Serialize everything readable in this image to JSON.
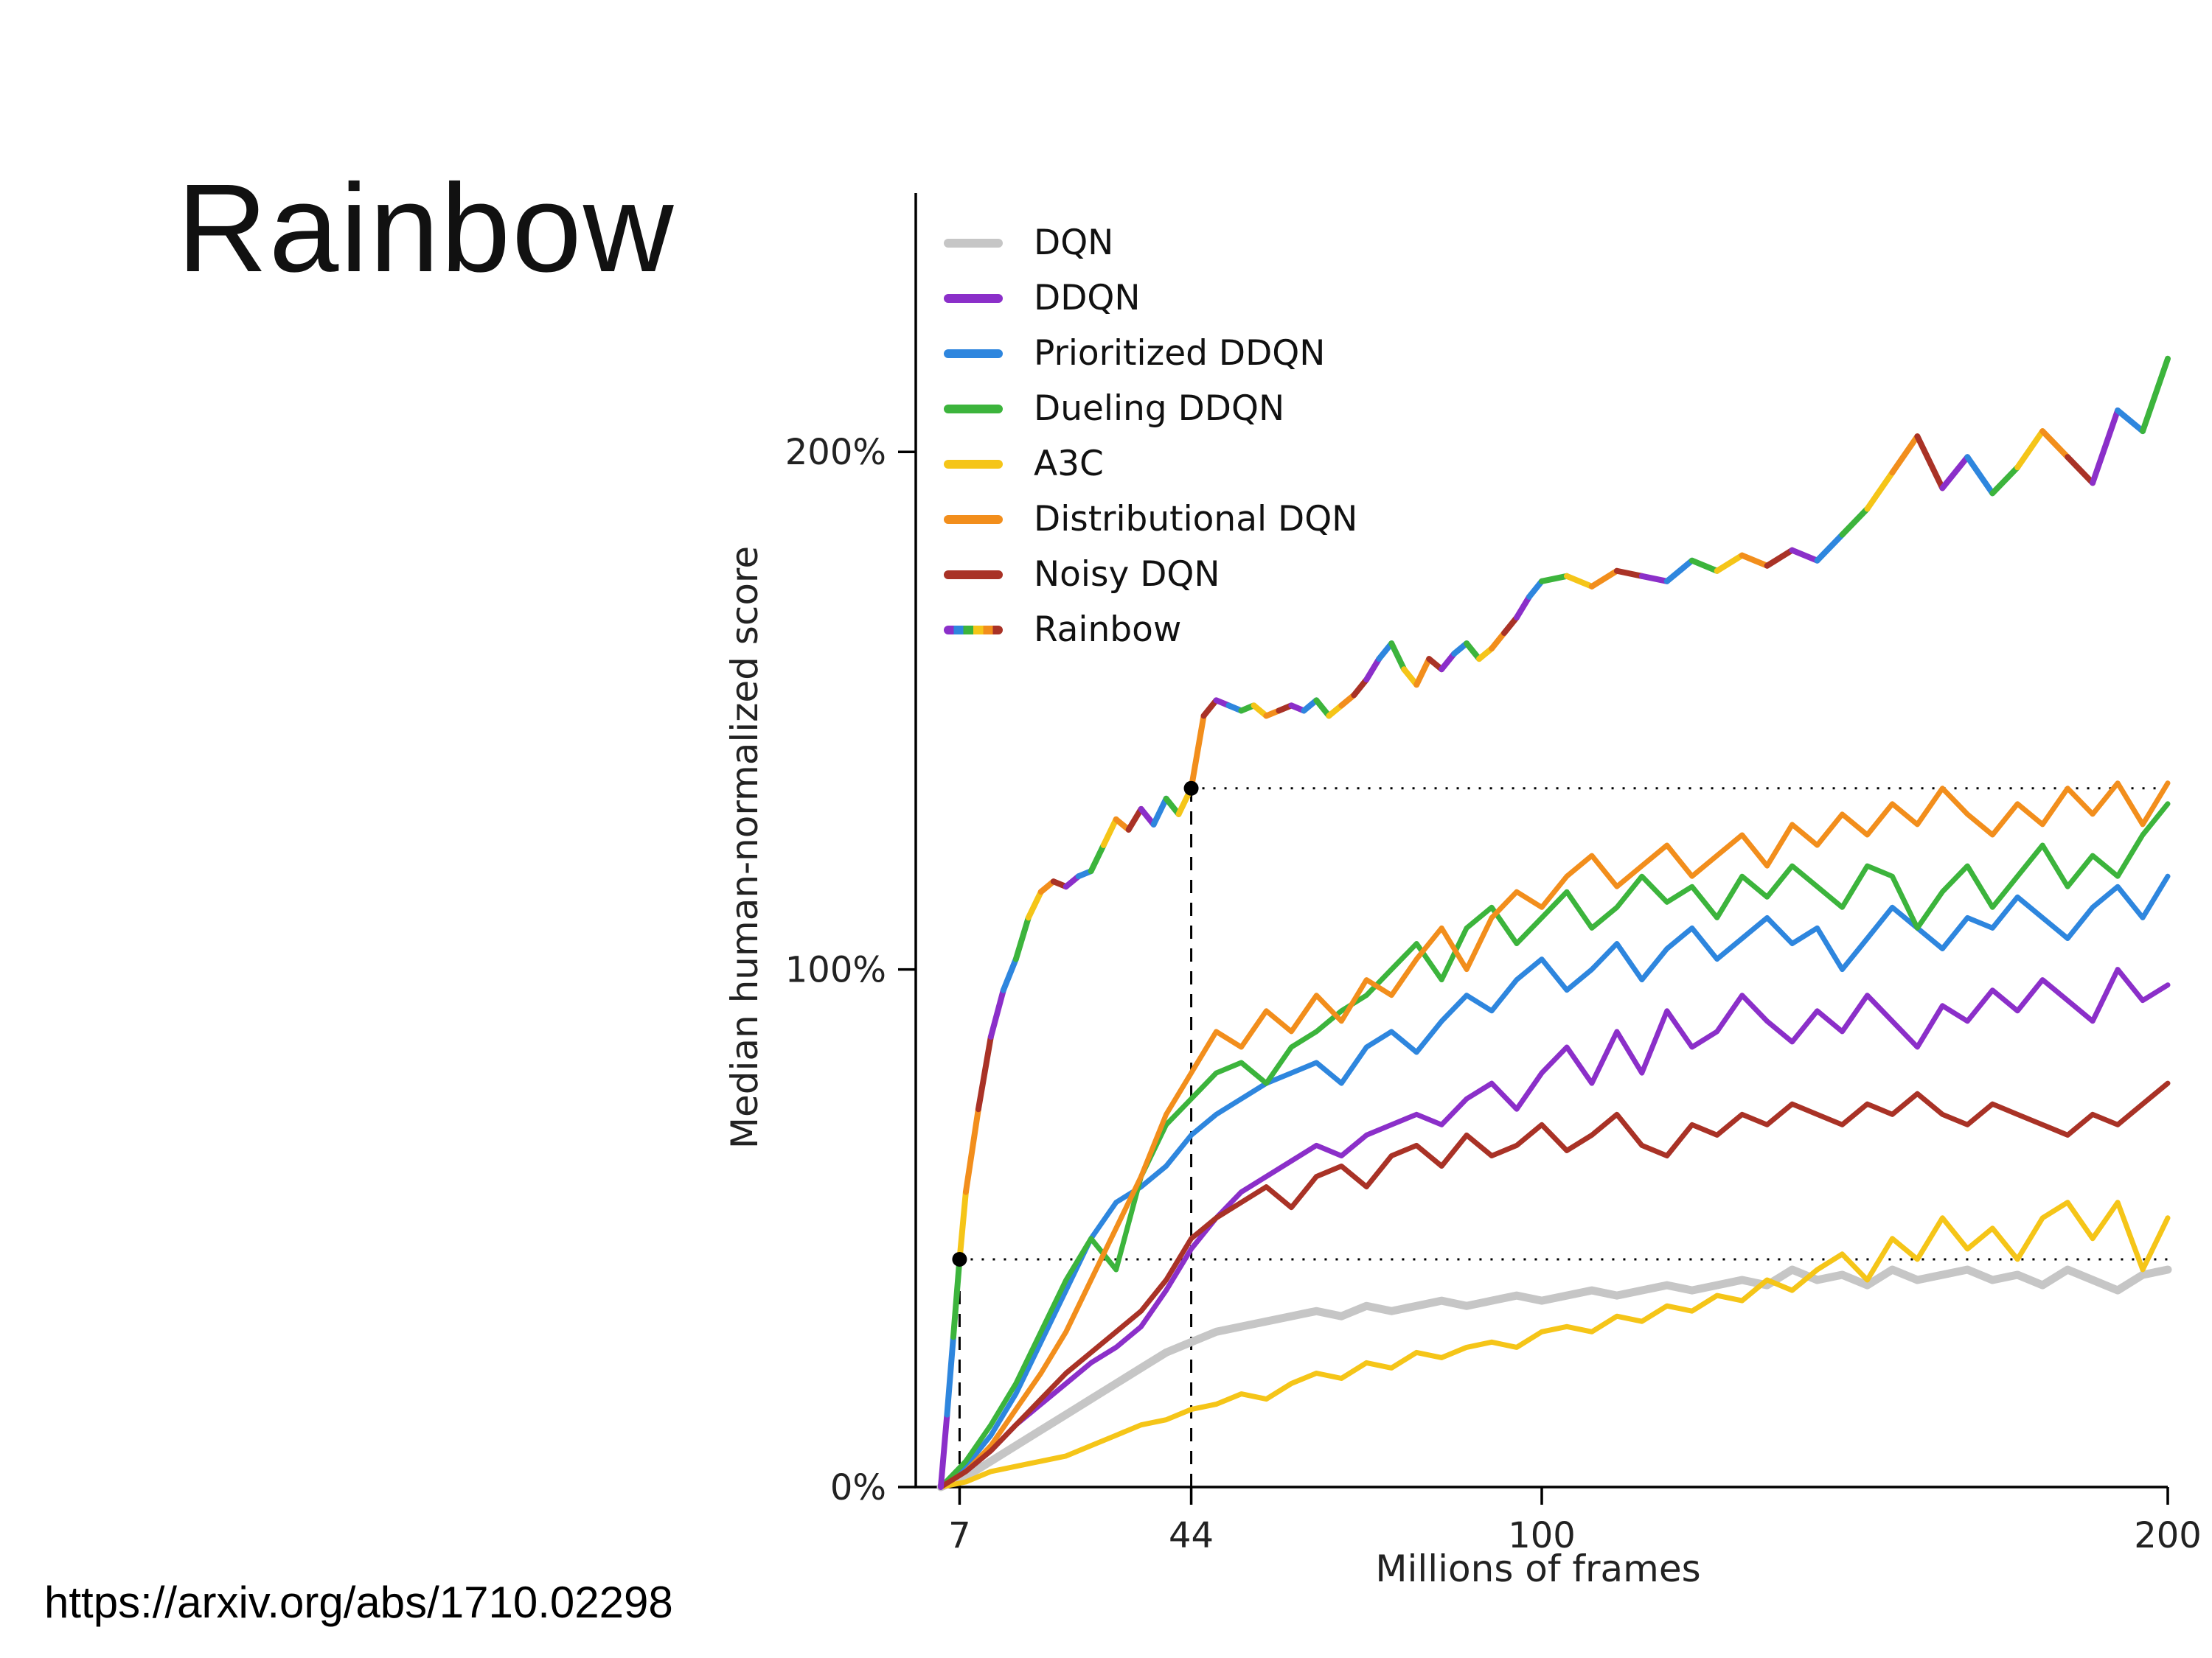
{
  "title": "Rainbow",
  "footer_url": "https://arxiv.org/abs/1710.02298",
  "chart_data": {
    "type": "line",
    "title": "",
    "xlabel": "Millions of frames",
    "ylabel": "Median human-normalized score",
    "xlim": [
      0,
      200
    ],
    "ylim": [
      0,
      250
    ],
    "grid": false,
    "legend_position": "upper-left",
    "xticks": [
      {
        "v": 7,
        "label": "7"
      },
      {
        "v": 44,
        "label": "44"
      },
      {
        "v": 100,
        "label": "100"
      },
      {
        "v": 200,
        "label": "200"
      }
    ],
    "yticks": [
      {
        "v": 0,
        "label": "0%"
      },
      {
        "v": 100,
        "label": "100%"
      },
      {
        "v": 200,
        "label": "200%"
      }
    ],
    "x": [
      4,
      8,
      12,
      16,
      20,
      24,
      28,
      32,
      36,
      40,
      44,
      48,
      52,
      56,
      60,
      64,
      68,
      72,
      76,
      80,
      84,
      88,
      92,
      96,
      100,
      104,
      108,
      112,
      116,
      120,
      124,
      128,
      132,
      136,
      140,
      144,
      148,
      152,
      156,
      160,
      164,
      168,
      172,
      176,
      180,
      184,
      188,
      192,
      196,
      200
    ],
    "series": [
      {
        "name": "DQN",
        "color": "#c6c6c6",
        "width": 11,
        "values": [
          0,
          2,
          5,
          8,
          11,
          14,
          17,
          20,
          23,
          26,
          28,
          30,
          31,
          32,
          33,
          34,
          33,
          35,
          34,
          35,
          36,
          35,
          36,
          37,
          36,
          37,
          38,
          37,
          38,
          39,
          38,
          39,
          40,
          39,
          42,
          40,
          41,
          39,
          42,
          40,
          41,
          42,
          40,
          41,
          39,
          42,
          40,
          38,
          41,
          42
        ]
      },
      {
        "name": "DDQN",
        "color": "#8b2fc9",
        "width": 7,
        "values": [
          0,
          3,
          7,
          12,
          16,
          20,
          24,
          27,
          31,
          38,
          46,
          52,
          57,
          60,
          63,
          66,
          64,
          68,
          70,
          72,
          70,
          75,
          78,
          73,
          80,
          85,
          78,
          88,
          80,
          92,
          85,
          88,
          95,
          90,
          86,
          92,
          88,
          95,
          90,
          85,
          93,
          90,
          96,
          92,
          98,
          94,
          90,
          100,
          94,
          97
        ]
      },
      {
        "name": "Prioritized DDQN",
        "color": "#2e86de",
        "width": 7,
        "values": [
          0,
          4,
          10,
          18,
          28,
          38,
          48,
          55,
          58,
          62,
          68,
          72,
          75,
          78,
          80,
          82,
          78,
          85,
          88,
          84,
          90,
          95,
          92,
          98,
          102,
          96,
          100,
          105,
          98,
          104,
          108,
          102,
          106,
          110,
          105,
          108,
          100,
          106,
          112,
          108,
          104,
          110,
          108,
          114,
          110,
          106,
          112,
          116,
          110,
          118
        ]
      },
      {
        "name": "Dueling DDQN",
        "color": "#3cb43c",
        "width": 7,
        "values": [
          0,
          5,
          12,
          20,
          30,
          40,
          48,
          42,
          60,
          70,
          75,
          80,
          82,
          78,
          85,
          88,
          92,
          95,
          100,
          105,
          98,
          108,
          112,
          105,
          110,
          115,
          108,
          112,
          118,
          113,
          116,
          110,
          118,
          114,
          120,
          116,
          112,
          120,
          118,
          108,
          115,
          120,
          112,
          118,
          124,
          116,
          122,
          118,
          126,
          132
        ]
      },
      {
        "name": "A3C",
        "color": "#f5c518",
        "width": 7,
        "values": [
          0,
          1,
          3,
          4,
          5,
          6,
          8,
          10,
          12,
          13,
          15,
          16,
          18,
          17,
          20,
          22,
          21,
          24,
          23,
          26,
          25,
          27,
          28,
          27,
          30,
          31,
          30,
          33,
          32,
          35,
          34,
          37,
          36,
          40,
          38,
          42,
          45,
          40,
          48,
          44,
          52,
          46,
          50,
          44,
          52,
          55,
          48,
          55,
          42,
          52
        ]
      },
      {
        "name": "Distributional DQN",
        "color": "#f28e1c",
        "width": 7,
        "values": [
          0,
          3,
          8,
          15,
          22,
          30,
          40,
          50,
          60,
          72,
          80,
          88,
          85,
          92,
          88,
          95,
          90,
          98,
          95,
          102,
          108,
          100,
          110,
          115,
          112,
          118,
          122,
          116,
          120,
          124,
          118,
          122,
          126,
          120,
          128,
          124,
          130,
          126,
          132,
          128,
          135,
          130,
          126,
          132,
          128,
          135,
          130,
          136,
          128,
          136
        ]
      },
      {
        "name": "Noisy DQN",
        "color": "#a93226",
        "width": 7,
        "values": [
          0,
          3,
          7,
          12,
          17,
          22,
          26,
          30,
          34,
          40,
          48,
          52,
          55,
          58,
          54,
          60,
          62,
          58,
          64,
          66,
          62,
          68,
          64,
          66,
          70,
          65,
          68,
          72,
          66,
          64,
          70,
          68,
          72,
          70,
          74,
          72,
          70,
          74,
          72,
          76,
          72,
          70,
          74,
          72,
          70,
          68,
          72,
          70,
          74,
          78
        ]
      },
      {
        "name": "Rainbow",
        "color": "rainbow",
        "width": 8,
        "points": [
          [
            4,
            0
          ],
          [
            5,
            14
          ],
          [
            6,
            29
          ],
          [
            7,
            44
          ],
          [
            8,
            57
          ],
          [
            10,
            73
          ],
          [
            12,
            87
          ],
          [
            14,
            96
          ],
          [
            16,
            102
          ],
          [
            18,
            110
          ],
          [
            20,
            115
          ],
          [
            22,
            117
          ],
          [
            24,
            116
          ],
          [
            26,
            118
          ],
          [
            28,
            119
          ],
          [
            30,
            124
          ],
          [
            32,
            129
          ],
          [
            34,
            127
          ],
          [
            36,
            131
          ],
          [
            38,
            128
          ],
          [
            40,
            133
          ],
          [
            42,
            130
          ],
          [
            44,
            135
          ],
          [
            46,
            149
          ],
          [
            48,
            152
          ],
          [
            50,
            151
          ],
          [
            52,
            150
          ],
          [
            54,
            151
          ],
          [
            56,
            149
          ],
          [
            58,
            150
          ],
          [
            60,
            151
          ],
          [
            62,
            150
          ],
          [
            64,
            152
          ],
          [
            66,
            149
          ],
          [
            68,
            151
          ],
          [
            70,
            153
          ],
          [
            72,
            156
          ],
          [
            74,
            160
          ],
          [
            76,
            163
          ],
          [
            78,
            158
          ],
          [
            80,
            155
          ],
          [
            82,
            160
          ],
          [
            84,
            158
          ],
          [
            86,
            161
          ],
          [
            88,
            163
          ],
          [
            90,
            160
          ],
          [
            92,
            162
          ],
          [
            94,
            165
          ],
          [
            96,
            168
          ],
          [
            98,
            172
          ],
          [
            100,
            175
          ],
          [
            104,
            176
          ],
          [
            108,
            174
          ],
          [
            112,
            177
          ],
          [
            116,
            176
          ],
          [
            120,
            175
          ],
          [
            124,
            179
          ],
          [
            128,
            177
          ],
          [
            132,
            180
          ],
          [
            136,
            178
          ],
          [
            140,
            181
          ],
          [
            144,
            179
          ],
          [
            148,
            184
          ],
          [
            152,
            189
          ],
          [
            156,
            196
          ],
          [
            160,
            203
          ],
          [
            164,
            193
          ],
          [
            168,
            199
          ],
          [
            172,
            192
          ],
          [
            176,
            197
          ],
          [
            180,
            204
          ],
          [
            184,
            199
          ],
          [
            188,
            194
          ],
          [
            192,
            208
          ],
          [
            196,
            204
          ],
          [
            200,
            218
          ]
        ]
      }
    ],
    "rainbow_palette": [
      "#8b2fc9",
      "#2e86de",
      "#3cb43c",
      "#f5c518",
      "#f28e1c",
      "#a93226"
    ],
    "annotations": [
      {
        "x": 7,
        "y": 44
      },
      {
        "x": 44,
        "y": 135
      }
    ]
  }
}
